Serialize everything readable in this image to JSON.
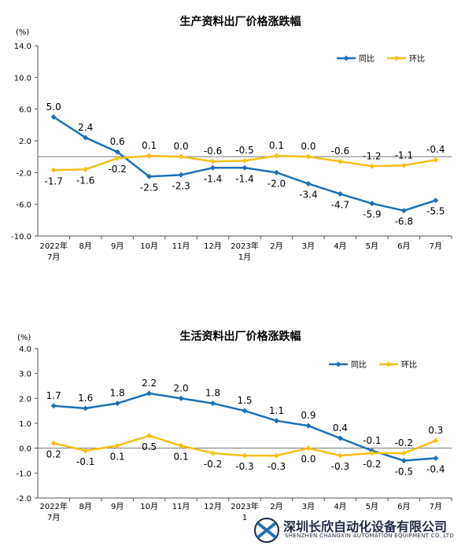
{
  "chart_data": [
    {
      "type": "line",
      "title": "生产资料出厂价格涨跌幅",
      "unit_label": "(%)",
      "categories": [
        [
          "2022年",
          "7月"
        ],
        [
          "8月"
        ],
        [
          "9月"
        ],
        [
          "10月"
        ],
        [
          "11月"
        ],
        [
          "12月"
        ],
        [
          "2023年",
          "1月"
        ],
        [
          "2月"
        ],
        [
          "3月"
        ],
        [
          "4月"
        ],
        [
          "5月"
        ],
        [
          "6月"
        ],
        [
          "7月"
        ]
      ],
      "ylim": [
        -10.0,
        14.0
      ],
      "yticks": [
        "14.0",
        "10.0",
        "6.0",
        "2.0",
        "-2.0",
        "-6.0",
        "-10.0"
      ],
      "grid": false,
      "legend_position": "top-right",
      "series": [
        {
          "name": "同比",
          "color": "#1f6fb5",
          "values": [
            5.0,
            2.4,
            0.6,
            -2.5,
            -2.3,
            -1.4,
            -1.4,
            -2.0,
            -3.4,
            -4.7,
            -5.9,
            -6.8,
            -5.5
          ],
          "labels": [
            "5.0",
            "2.4",
            "0.6",
            "-2.5",
            "-2.3",
            "-1.4",
            "-1.4",
            "-2.0",
            "-3.4",
            "-4.7",
            "-5.9",
            "-6.8",
            "-5.5"
          ]
        },
        {
          "name": "环比",
          "color": "#f5c116",
          "values": [
            -1.7,
            -1.6,
            -0.2,
            0.1,
            0.0,
            -0.6,
            -0.5,
            0.1,
            0.0,
            -0.6,
            -1.2,
            -1.1,
            -0.4
          ],
          "labels": [
            "-1.7",
            "-1.6",
            "-0.2",
            "0.1",
            "0.0",
            "-0.6",
            "-0.5",
            "0.1",
            "0.0",
            "-0.6",
            "-1.2",
            "-1.1",
            "-0.4"
          ]
        }
      ]
    },
    {
      "type": "line",
      "title": "生活资料出厂价格涨跌幅",
      "unit_label": "(%)",
      "categories": [
        [
          "2022年",
          "7月"
        ],
        [
          "8月"
        ],
        [
          "9月"
        ],
        [
          "10月"
        ],
        [
          "11月"
        ],
        [
          "12月"
        ],
        [
          "2023年",
          "1"
        ],
        [
          "2月"
        ],
        [
          "3月"
        ],
        [
          "4月"
        ],
        [
          "5月"
        ],
        [
          "6月"
        ],
        [
          "7月"
        ]
      ],
      "ylim": [
        -2.0,
        4.0
      ],
      "yticks": [
        "4.0",
        "3.0",
        "2.0",
        "1.0",
        "0.0",
        "-1.0",
        "-2.0"
      ],
      "grid": false,
      "legend_position": "top-right",
      "series": [
        {
          "name": "同比",
          "color": "#1f6fb5",
          "values": [
            1.7,
            1.6,
            1.8,
            2.2,
            2.0,
            1.8,
            1.5,
            1.1,
            0.9,
            0.4,
            -0.1,
            -0.5,
            -0.4
          ],
          "labels": [
            "1.7",
            "1.6",
            "1.8",
            "2.2",
            "2.0",
            "1.8",
            "1.5",
            "1.1",
            "0.9",
            "0.4",
            "-0.1",
            "-0.5",
            "-0.4"
          ]
        },
        {
          "name": "环比",
          "color": "#f5c116",
          "values": [
            0.2,
            -0.1,
            0.1,
            0.5,
            0.1,
            -0.2,
            -0.3,
            -0.3,
            0.0,
            -0.3,
            -0.2,
            -0.2,
            0.3
          ],
          "labels": [
            "0.2",
            "-0.1",
            "0.1",
            "0.5",
            "0.1",
            "-0.2",
            "-0.3",
            "-0.3",
            "0.0",
            "-0.3",
            "-0.2",
            "-0.2",
            "0.3"
          ]
        }
      ]
    }
  ],
  "watermark": {
    "company_cn": "深圳长欣自动化设备有限公司",
    "company_en": "SHENZHEN CHANGXIN AUTOMATION EQUIPMENT CO.,LTD"
  }
}
